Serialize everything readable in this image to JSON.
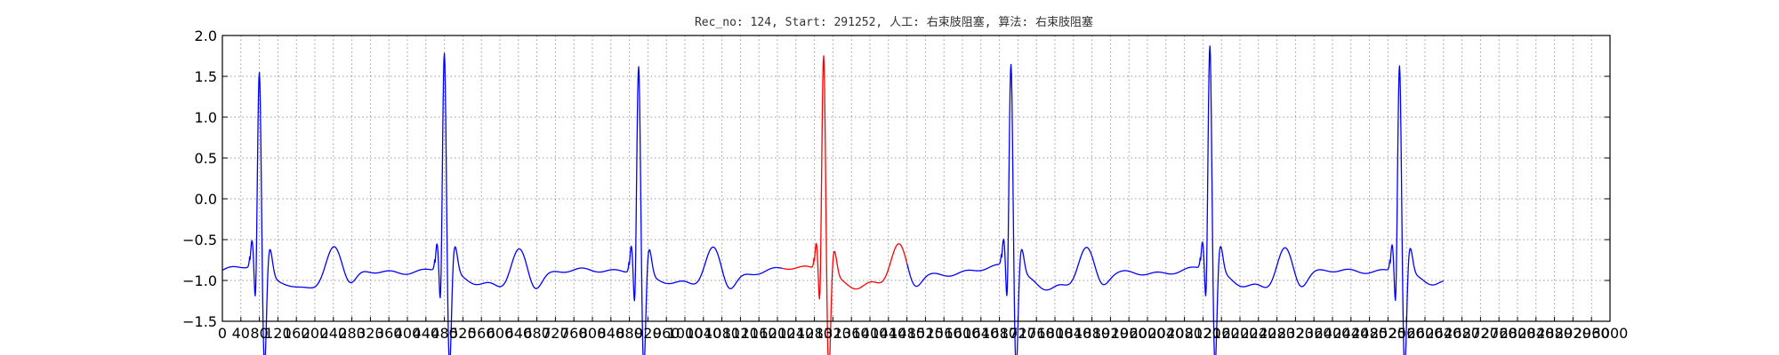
{
  "chart_data": {
    "type": "line",
    "title": "Rec_no: 124, Start: 291252, 人工: 右束肢阻塞, 算法: 右束肢阻塞",
    "xlabel": "",
    "ylabel": "",
    "xlim": [
      0,
      3000
    ],
    "ylim": [
      -1.5,
      2.0
    ],
    "grid": true,
    "colors": {
      "normal": "#0000ff",
      "highlight": "#ff0000"
    },
    "y_ticks": [
      "2.0",
      "1.5",
      "1.0",
      "0.5",
      "0.0",
      "−0.5",
      "−1.0",
      "−1.5"
    ],
    "y_tick_values": [
      2.0,
      1.5,
      1.0,
      0.5,
      0.0,
      -0.5,
      -1.0,
      -1.5
    ],
    "x_ticks": [
      "0",
      "40",
      "80",
      "120",
      "160",
      "200",
      "240",
      "280",
      "320",
      "360",
      "400",
      "440",
      "480",
      "520",
      "560",
      "600",
      "640",
      "680",
      "720",
      "760",
      "800",
      "840",
      "880",
      "920",
      "960",
      "1000",
      "1040",
      "1080",
      "1120",
      "1160",
      "1200",
      "1240",
      "1280",
      "1320",
      "1360",
      "1400",
      "1440",
      "1480",
      "1520",
      "1560",
      "1600",
      "1640",
      "1680",
      "1720",
      "1760",
      "1800",
      "1840",
      "1880",
      "1920",
      "1960",
      "2000",
      "2040",
      "2080",
      "2120",
      "2160",
      "2200",
      "2240",
      "2280",
      "2320",
      "2360",
      "2400",
      "2440",
      "2480",
      "2520",
      "2560",
      "2600",
      "2640",
      "2680",
      "2720",
      "2760",
      "2800",
      "2840",
      "2880",
      "2920",
      "2960",
      "3000"
    ],
    "series": [
      {
        "segment": "before",
        "color": "#0000ff",
        "x_range": [
          0,
          1210
        ]
      },
      {
        "segment": "highlight",
        "color": "#ff0000",
        "x_range": [
          1210,
          1480
        ]
      },
      {
        "segment": "after",
        "color": "#0000ff",
        "x_range": [
          1480,
          2640
        ]
      }
    ],
    "beats": [
      {
        "r_peak_x": 80,
        "r_amplitude": 1.35
      },
      {
        "r_peak_x": 480,
        "r_amplitude": 1.62
      },
      {
        "r_peak_x": 900,
        "r_amplitude": 1.48
      },
      {
        "r_peak_x": 1300,
        "r_amplitude": 1.63
      },
      {
        "r_peak_x": 1705,
        "r_amplitude": 1.48
      },
      {
        "r_peak_x": 2135,
        "r_amplitude": 1.7
      },
      {
        "r_peak_x": 2545,
        "r_amplitude": 1.5
      }
    ],
    "baseline": -0.95,
    "x_end": 2640
  }
}
